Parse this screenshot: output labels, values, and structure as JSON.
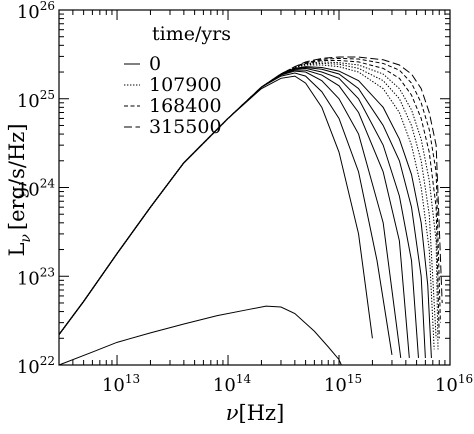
{
  "chart_data": {
    "type": "line",
    "title": "",
    "xlabel": {
      "symbol": "ν",
      "unit": "[Hz]"
    },
    "ylabel": {
      "base": "L",
      "sub": "ν",
      "unit": "[erg/s/Hz]"
    },
    "xscale": "log",
    "yscale": "log",
    "xlim": [
      3000000000000.0,
      1e+16
    ],
    "ylim": [
      1e+22,
      1e+26
    ],
    "xticks": [
      {
        "value": 10000000000000.0,
        "base": "10",
        "exp": "13"
      },
      {
        "value": 100000000000000.0,
        "base": "10",
        "exp": "14"
      },
      {
        "value": 1000000000000000.0,
        "base": "10",
        "exp": "15"
      },
      {
        "value": 1e+16,
        "base": "10",
        "exp": "16"
      }
    ],
    "yticks": [
      {
        "value": 1e+22,
        "base": "10",
        "exp": "22"
      },
      {
        "value": 1e+23,
        "base": "10",
        "exp": "23"
      },
      {
        "value": 1e+24,
        "base": "10",
        "exp": "24"
      },
      {
        "value": 1e+25,
        "base": "10",
        "exp": "25"
      },
      {
        "value": 1e+26,
        "base": "10",
        "exp": "26"
      }
    ],
    "legend": {
      "title": "time/yrs",
      "position": "top-left",
      "entries": [
        {
          "label": "0",
          "style": "solid"
        },
        {
          "label": "107900",
          "style": "dotted"
        },
        {
          "label": "168400",
          "style": "dash-short"
        },
        {
          "label": "315500",
          "style": "dash-long"
        }
      ]
    },
    "series": [
      {
        "style": "solid",
        "x": [
          3000000000000.0,
          6000000000000.0,
          10000000000000.0,
          20000000000000.0,
          40000000000000.0,
          80000000000000.0,
          150000000000000.0,
          220000000000000.0,
          300000000000000.0,
          400000000000000.0,
          600000000000000.0,
          800000000000000.0,
          1000000000000000.0,
          1050000000000000.0
        ],
        "y": [
          1e+22,
          1.4e+22,
          1.8e+22,
          2.3e+22,
          2.9e+22,
          3.6e+22,
          4.2e+22,
          4.6e+22,
          4.5e+22,
          3.8e+22,
          2.4e+22,
          1.6e+22,
          1.15e+22,
          1e+22
        ]
      },
      {
        "style": "solid",
        "x": [
          3000000000000.0,
          5000000000000.0,
          10000000000000.0,
          20000000000000.0,
          40000000000000.0,
          100000000000000.0,
          200000000000000.0,
          300000000000000.0,
          400000000000000.0,
          500000000000000.0,
          700000000000000.0,
          1000000000000000.0,
          1500000000000000.0,
          2000000000000000.0
        ],
        "y": [
          2.2e+22,
          5.2e+22,
          1.8e+23,
          6e+23,
          1.9e+24,
          6e+24,
          1.3e+25,
          1.7e+25,
          1.8e+25,
          1.5e+25,
          8e+24,
          2.5e+24,
          3e+23,
          2e+22
        ]
      },
      {
        "style": "solid",
        "x": [
          3000000000000.0,
          5000000000000.0,
          10000000000000.0,
          20000000000000.0,
          40000000000000.0,
          100000000000000.0,
          200000000000000.0,
          300000000000000.0,
          400000000000000.0,
          500000000000000.0,
          700000000000000.0,
          1000000000000000.0,
          1500000000000000.0,
          2200000000000000.0,
          3000000000000000.0
        ],
        "y": [
          2.2e+22,
          5.2e+22,
          1.8e+23,
          6e+23,
          1.9e+24,
          6e+24,
          1.35e+25,
          1.8e+25,
          1.95e+25,
          1.8e+25,
          1.2e+25,
          6e+24,
          1.5e+24,
          1.5e+23,
          1.3e+22
        ]
      },
      {
        "style": "solid",
        "x": [
          3000000000000.0,
          5000000000000.0,
          10000000000000.0,
          20000000000000.0,
          40000000000000.0,
          100000000000000.0,
          200000000000000.0,
          300000000000000.0,
          400000000000000.0,
          500000000000000.0,
          700000000000000.0,
          1000000000000000.0,
          1500000000000000.0,
          2500000000000000.0,
          3600000000000000.0
        ],
        "y": [
          2.2e+22,
          5.2e+22,
          1.8e+23,
          6e+23,
          1.9e+24,
          6e+24,
          1.35e+25,
          1.85e+25,
          2.05e+25,
          2e+25,
          1.6e+25,
          1e+25,
          4e+24,
          4e+23,
          1.2e+22
        ]
      },
      {
        "style": "solid",
        "x": [
          3000000000000.0,
          5000000000000.0,
          10000000000000.0,
          20000000000000.0,
          40000000000000.0,
          100000000000000.0,
          200000000000000.0,
          300000000000000.0,
          400000000000000.0,
          500000000000000.0,
          700000000000000.0,
          1000000000000000.0,
          1500000000000000.0,
          2500000000000000.0,
          3500000000000000.0,
          4300000000000000.0
        ],
        "y": [
          2.2e+22,
          5.2e+22,
          1.8e+23,
          6e+23,
          1.9e+24,
          6e+24,
          1.35e+25,
          1.88e+25,
          2.1e+25,
          2.1e+25,
          1.85e+25,
          1.4e+25,
          7e+24,
          1.5e+24,
          2.5e+23,
          1.2e+22
        ]
      },
      {
        "style": "solid",
        "x": [
          3000000000000.0,
          5000000000000.0,
          10000000000000.0,
          20000000000000.0,
          40000000000000.0,
          100000000000000.0,
          200000000000000.0,
          300000000000000.0,
          400000000000000.0,
          500000000000000.0,
          700000000000000.0,
          1000000000000000.0,
          1500000000000000.0,
          2500000000000000.0,
          3500000000000000.0,
          4500000000000000.0,
          5200000000000000.0
        ],
        "y": [
          2.2e+22,
          5.2e+22,
          1.8e+23,
          6e+23,
          1.9e+24,
          6e+24,
          1.35e+25,
          1.9e+25,
          2.15e+25,
          2.2e+25,
          2e+25,
          1.7e+25,
          1e+25,
          3e+24,
          8e+23,
          1.5e+23,
          1.2e+22
        ]
      },
      {
        "style": "solid",
        "x": [
          3000000000000.0,
          5000000000000.0,
          10000000000000.0,
          20000000000000.0,
          40000000000000.0,
          100000000000000.0,
          200000000000000.0,
          300000000000000.0,
          400000000000000.0,
          500000000000000.0,
          700000000000000.0,
          1000000000000000.0,
          1500000000000000.0,
          2500000000000000.0,
          3500000000000000.0,
          4500000000000000.0,
          5500000000000000.0,
          6000000000000000.0
        ],
        "y": [
          2.2e+22,
          5.2e+22,
          1.8e+23,
          6e+23,
          1.9e+24,
          6e+24,
          1.35e+25,
          1.9e+25,
          2.2e+25,
          2.25e+25,
          2.15e+25,
          1.9e+25,
          1.3e+25,
          5e+24,
          2e+24,
          6e+23,
          1e+23,
          1.2e+22
        ]
      },
      {
        "style": "solid",
        "x": [
          3000000000000.0,
          5000000000000.0,
          10000000000000.0,
          20000000000000.0,
          40000000000000.0,
          100000000000000.0,
          200000000000000.0,
          300000000000000.0,
          400000000000000.0,
          500000000000000.0,
          700000000000000.0,
          1000000000000000.0,
          1500000000000000.0,
          2500000000000000.0,
          3500000000000000.0,
          4500000000000000.0,
          5500000000000000.0,
          6300000000000000.0,
          6800000000000000.0
        ],
        "y": [
          2.2e+22,
          5.2e+22,
          1.8e+23,
          6e+23,
          1.9e+24,
          6e+24,
          1.35e+25,
          1.9e+25,
          2.2e+25,
          2.3e+25,
          2.25e+25,
          2.05e+25,
          1.6e+25,
          8e+24,
          3.5e+24,
          1.4e+24,
          4e+23,
          8e+22,
          1.2e+22
        ]
      },
      {
        "style": "dotted",
        "x": [
          3000000000000.0,
          5000000000000.0,
          10000000000000.0,
          20000000000000.0,
          40000000000000.0,
          100000000000000.0,
          200000000000000.0,
          300000000000000.0,
          400000000000000.0,
          500000000000000.0,
          700000000000000.0,
          1000000000000000.0,
          1500000000000000.0,
          2500000000000000.0,
          3500000000000000.0,
          4500000000000000.0,
          5500000000000000.0,
          6500000000000000.0,
          7200000000000000.0
        ],
        "y": [
          2.2e+22,
          5.2e+22,
          1.8e+23,
          6e+23,
          1.9e+24,
          6e+24,
          1.35e+25,
          1.9e+25,
          2.25e+25,
          2.4e+25,
          2.4e+25,
          2.3e+25,
          2e+25,
          1.3e+25,
          7e+24,
          3e+24,
          1e+24,
          2e+23,
          1.5e+22
        ]
      },
      {
        "style": "dotted",
        "x": [
          3000000000000.0,
          5000000000000.0,
          10000000000000.0,
          20000000000000.0,
          40000000000000.0,
          100000000000000.0,
          200000000000000.0,
          300000000000000.0,
          400000000000000.0,
          500000000000000.0,
          700000000000000.0,
          1000000000000000.0,
          1500000000000000.0,
          2500000000000000.0,
          3500000000000000.0,
          4500000000000000.0,
          5500000000000000.0,
          6500000000000000.0,
          7500000000000000.0
        ],
        "y": [
          2.2e+22,
          5.2e+22,
          1.8e+23,
          6e+23,
          1.9e+24,
          6e+24,
          1.35e+25,
          1.9e+25,
          2.25e+25,
          2.45e+25,
          2.5e+25,
          2.45e+25,
          2.2e+25,
          1.6e+25,
          1e+25,
          5e+24,
          2e+24,
          5e+23,
          2e+22
        ]
      },
      {
        "style": "dotted",
        "x": [
          3000000000000.0,
          5000000000000.0,
          10000000000000.0,
          20000000000000.0,
          40000000000000.0,
          100000000000000.0,
          200000000000000.0,
          300000000000000.0,
          400000000000000.0,
          500000000000000.0,
          700000000000000.0,
          1000000000000000.0,
          1500000000000000.0,
          2500000000000000.0,
          3500000000000000.0,
          4500000000000000.0,
          5500000000000000.0,
          6500000000000000.0,
          7500000000000000.0,
          7800000000000000.0
        ],
        "y": [
          2.2e+22,
          5.2e+22,
          1.8e+23,
          6e+23,
          1.9e+24,
          6e+24,
          1.35e+25,
          1.9e+25,
          2.25e+25,
          2.48e+25,
          2.6e+25,
          2.55e+25,
          2.4e+25,
          1.9e+25,
          1.3e+25,
          7.5e+24,
          3.5e+24,
          1.2e+24,
          2.5e+23,
          1.5e+22
        ]
      },
      {
        "style": "dash-short",
        "x": [
          3000000000000.0,
          5000000000000.0,
          10000000000000.0,
          20000000000000.0,
          40000000000000.0,
          100000000000000.0,
          200000000000000.0,
          300000000000000.0,
          400000000000000.0,
          500000000000000.0,
          700000000000000.0,
          1000000000000000.0,
          1500000000000000.0,
          2500000000000000.0,
          3500000000000000.0,
          4500000000000000.0,
          5500000000000000.0,
          6500000000000000.0,
          7500000000000000.0,
          8000000000000000.0
        ],
        "y": [
          2.2e+22,
          5.2e+22,
          1.8e+23,
          6e+23,
          1.9e+24,
          6e+24,
          1.35e+25,
          1.9e+25,
          2.28e+25,
          2.5e+25,
          2.7e+25,
          2.7e+25,
          2.6e+25,
          2.2e+25,
          1.7e+25,
          1.1e+25,
          6e+24,
          2.5e+24,
          6e+23,
          2e+22
        ]
      },
      {
        "style": "dash-short",
        "x": [
          3000000000000.0,
          5000000000000.0,
          10000000000000.0,
          20000000000000.0,
          40000000000000.0,
          100000000000000.0,
          200000000000000.0,
          300000000000000.0,
          400000000000000.0,
          500000000000000.0,
          700000000000000.0,
          1000000000000000.0,
          1500000000000000.0,
          2500000000000000.0,
          3500000000000000.0,
          4500000000000000.0,
          5500000000000000.0,
          6500000000000000.0,
          7500000000000000.0,
          8200000000000000.0
        ],
        "y": [
          2.2e+22,
          5.2e+22,
          1.8e+23,
          6e+23,
          1.9e+24,
          6e+24,
          1.35e+25,
          1.9e+25,
          2.3e+25,
          2.55e+25,
          2.78e+25,
          2.85e+25,
          2.8e+25,
          2.5e+25,
          2.1e+25,
          1.5e+25,
          9e+24,
          4.5e+24,
          1.5e+24,
          3e+22
        ]
      },
      {
        "style": "dash-long",
        "x": [
          3000000000000.0,
          5000000000000.0,
          10000000000000.0,
          20000000000000.0,
          40000000000000.0,
          100000000000000.0,
          200000000000000.0,
          300000000000000.0,
          400000000000000.0,
          500000000000000.0,
          700000000000000.0,
          1000000000000000.0,
          1500000000000000.0,
          2500000000000000.0,
          3500000000000000.0,
          4500000000000000.0,
          5500000000000000.0,
          6500000000000000.0,
          7500000000000000.0,
          8500000000000000.0
        ],
        "y": [
          2.2e+22,
          5.2e+22,
          1.8e+23,
          6e+23,
          1.9e+24,
          6e+24,
          1.35e+25,
          1.9e+25,
          2.3e+25,
          2.6e+25,
          2.85e+25,
          2.95e+25,
          2.95e+25,
          2.75e+25,
          2.4e+25,
          1.9e+25,
          1.3e+25,
          7e+24,
          3e+24,
          5e+22
        ]
      }
    ]
  }
}
